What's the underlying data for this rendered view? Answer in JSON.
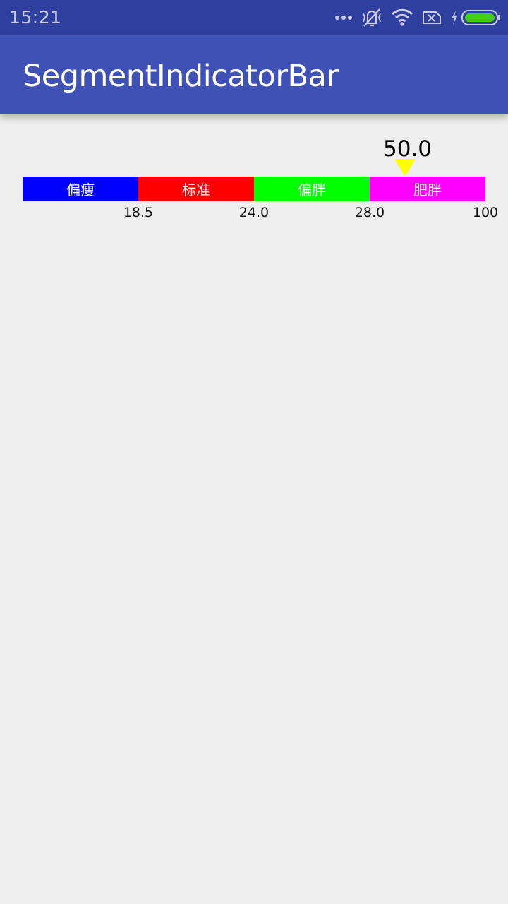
{
  "status_bar": {
    "time": "15:21",
    "icons": [
      "more-dots-icon",
      "vibrate-off-icon",
      "wifi-icon",
      "sim-x-icon",
      "charging-bolt-icon",
      "battery-icon"
    ],
    "battery_color": "#44cc11"
  },
  "app_bar": {
    "title": "SegmentIndicatorBar",
    "color": "#3f51b5"
  },
  "indicator": {
    "value_label": "50.0",
    "current_value": 50.0,
    "pointer_color": "#ffff00",
    "segments": [
      {
        "label": "偏瘦",
        "color": "#0000ff"
      },
      {
        "label": "标准",
        "color": "#ff0000"
      },
      {
        "label": "偏胖",
        "color": "#00ff00"
      },
      {
        "label": "肥胖",
        "color": "#ff00ff"
      }
    ],
    "ticks": [
      "18.5",
      "24.0",
      "28.0",
      "100"
    ]
  }
}
